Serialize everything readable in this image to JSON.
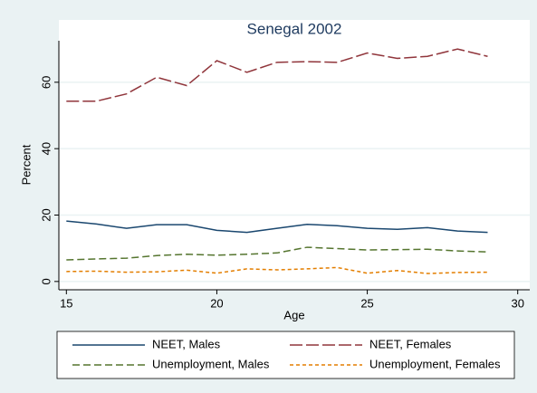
{
  "chart_data": {
    "type": "line",
    "title": "Senegal 2002",
    "x_label": "Age",
    "y_label": "Percent",
    "x": [
      15,
      16,
      17,
      18,
      19,
      20,
      21,
      22,
      23,
      24,
      25,
      26,
      27,
      28,
      29
    ],
    "series": [
      {
        "name": "NEET, Males",
        "color": "#1a476f",
        "values": [
          18.2,
          17.3,
          16,
          17.1,
          17.1,
          15.4,
          14.8,
          16,
          17.2,
          16.8,
          16,
          15.7,
          16.2,
          15.2,
          14.8
        ]
      },
      {
        "name": "NEET, Females",
        "color": "#90353b",
        "values": [
          54.3,
          54.3,
          56.5,
          61.5,
          59,
          66.5,
          63,
          66,
          66.2,
          66,
          68.8,
          67.2,
          67.8,
          70,
          67.8
        ]
      },
      {
        "name": "Unemployment, Males",
        "color": "#55752f",
        "values": [
          6.5,
          6.8,
          7,
          7.8,
          8.2,
          7.9,
          8.2,
          8.6,
          10.3,
          9.9,
          9.5,
          9.6,
          9.7,
          9.2,
          8.9
        ]
      },
      {
        "name": "Unemployment, Females",
        "color": "#e37e00",
        "values": [
          3.0,
          3.1,
          2.8,
          2.9,
          3.4,
          2.5,
          3.8,
          3.5,
          3.8,
          4.2,
          2.5,
          3.3,
          2.4,
          2.7,
          2.8
        ]
      }
    ],
    "xlim": [
      14.75,
      30.4
    ],
    "xticks": [
      15,
      20,
      25,
      30
    ],
    "ylim": [
      -2.5,
      72.5
    ],
    "yticks": [
      0,
      20,
      40,
      60
    ],
    "grid": true
  }
}
